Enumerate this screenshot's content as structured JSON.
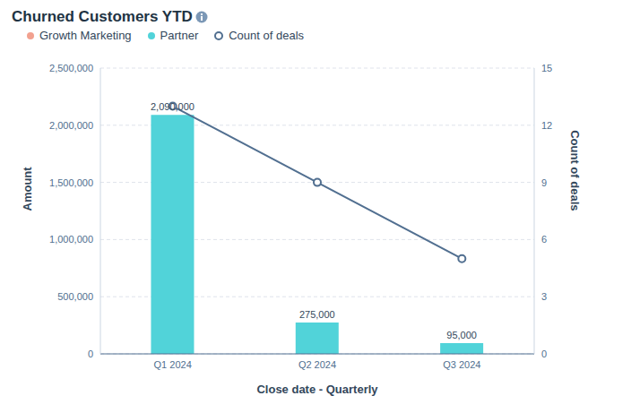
{
  "chart_data": {
    "type": "bar",
    "title": "Churned Customers YTD",
    "x_label": "Close date - Quarterly",
    "y_label": "Amount",
    "y2_label": "Count of deals",
    "categories": [
      "Q1 2024",
      "Q2 2024",
      "Q3 2024"
    ],
    "series": [
      {
        "name": "Growth Marketing",
        "color": "#f2a18f",
        "values": [
          null,
          null,
          null
        ]
      },
      {
        "name": "Partner",
        "color": "#51d3d9",
        "values": [
          2090000,
          275000,
          95000
        ],
        "value_labels": [
          "2,090,000",
          "275,000",
          "95,000"
        ]
      },
      {
        "name": "Count of deals",
        "type": "line",
        "axis": "y2",
        "color": "#516f90",
        "marker": "circle",
        "values": [
          13,
          9,
          5
        ]
      }
    ],
    "ylim": [
      0,
      2500000
    ],
    "yticks": [
      0,
      {
        "value": 500000,
        "label": "500,000"
      },
      {
        "value": 1000000,
        "label": "1,000,000"
      },
      {
        "value": 1500000,
        "label": "1,500,000"
      },
      {
        "value": 2000000,
        "label": "2,000,000"
      },
      {
        "value": 2500000,
        "label": "2,500,000"
      }
    ],
    "y2lim": [
      0,
      15
    ],
    "y2ticks": [
      0,
      3,
      6,
      9,
      12,
      15
    ],
    "grid": true,
    "stacked": true,
    "data_labels": true,
    "legend": "top"
  }
}
